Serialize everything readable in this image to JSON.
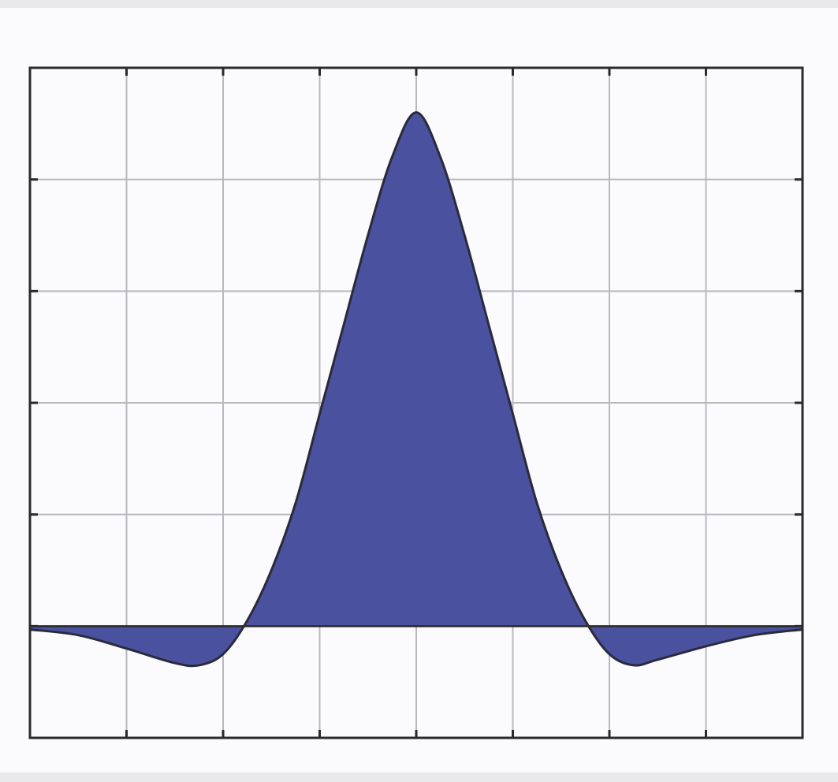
{
  "chart_data": {
    "type": "area",
    "title": "",
    "xlabel": "",
    "ylabel": "",
    "xlim": [
      0,
      8
    ],
    "ylim": [
      -1,
      5
    ],
    "grid": true,
    "x_gridlines": [
      1,
      2,
      3,
      4,
      5,
      6,
      7
    ],
    "y_gridlines": [
      0,
      1,
      2,
      3,
      4
    ],
    "series": [
      {
        "x": [
          0,
          0.5,
          1,
          1.5,
          1.75,
          2,
          2.25,
          2.5,
          2.75,
          3,
          3.25,
          3.5,
          3.75,
          4,
          4.25,
          4.5,
          4.75,
          5,
          5.25,
          5.5,
          5.75,
          6,
          6.25,
          6.5,
          7,
          7.5,
          8
        ],
        "y": [
          -0.03,
          -0.08,
          -0.2,
          -0.33,
          -0.35,
          -0.25,
          0.05,
          0.5,
          1.1,
          1.9,
          2.7,
          3.5,
          4.2,
          4.6,
          4.2,
          3.5,
          2.7,
          1.9,
          1.1,
          0.5,
          0.05,
          -0.25,
          -0.35,
          -0.3,
          -0.18,
          -0.08,
          -0.03
        ]
      }
    ],
    "colors": {
      "fill": "#4a52a0",
      "line": "#2a2a3a",
      "grid": "#b8b8be",
      "frame": "#2a2a2a"
    }
  }
}
